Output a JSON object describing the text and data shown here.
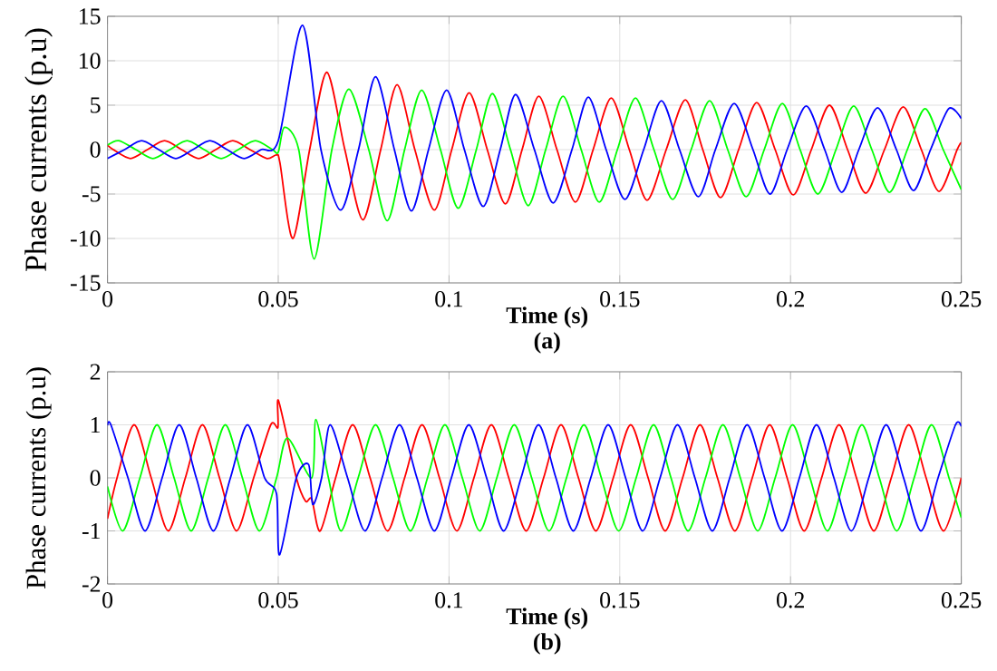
{
  "chart_data": [
    {
      "type": "line",
      "xlabel": "Time (s)",
      "ylabel": "Phase currents (p.u)",
      "annotations": [
        "(a)"
      ],
      "grid": true,
      "xlim": [
        0,
        0.25
      ],
      "ylim": [
        -15,
        15
      ],
      "xticks": [
        0,
        0.05,
        0.1,
        0.15,
        0.2,
        0.25
      ],
      "yticks": [
        -15,
        -10,
        -5,
        0,
        5,
        10,
        15
      ],
      "series": [
        {
          "color": "#ff0000",
          "x": [
            0,
            0.0017,
            0.0067,
            0.0117,
            0.0167,
            0.0217,
            0.0267,
            0.0317,
            0.0367,
            0.0417,
            0.0467,
            0.0495,
            0.0505,
            0.0543,
            0.0592,
            0.0642,
            0.0695,
            0.0748,
            0.08,
            0.0848,
            0.09,
            0.0957,
            0.1008,
            0.1059,
            0.1112,
            0.1165,
            0.1214,
            0.1263,
            0.1316,
            0.137,
            0.1422,
            0.1475,
            0.1528,
            0.158,
            0.1636,
            0.1692,
            0.1743,
            0.1795,
            0.1848,
            0.1901,
            0.1955,
            0.2008,
            0.2061,
            0.2114,
            0.2167,
            0.222,
            0.2275,
            0.233,
            0.2383,
            0.2435,
            0.2488,
            0.25
          ],
          "values": [
            0.5,
            0,
            -1,
            0,
            1,
            0,
            -1,
            0,
            1,
            0,
            -1,
            -0.6,
            -1.5,
            -10,
            0,
            8.7,
            0,
            -7.9,
            0,
            7.3,
            0,
            -6.8,
            0,
            6.4,
            0,
            -6.1,
            0,
            6.0,
            0,
            -5.9,
            0,
            5.8,
            0,
            -5.7,
            0,
            5.6,
            0,
            -5.4,
            0,
            5.3,
            0,
            -5.1,
            0,
            5.0,
            0,
            -4.9,
            0,
            4.8,
            0,
            -4.7,
            0,
            0.8
          ]
        },
        {
          "color": "#00ff00",
          "x": [
            0,
            0.0033,
            0.0083,
            0.0133,
            0.0183,
            0.0233,
            0.0283,
            0.0333,
            0.0383,
            0.0433,
            0.0483,
            0.05,
            0.0518,
            0.056,
            0.0605,
            0.0657,
            0.0707,
            0.0765,
            0.0819,
            0.087,
            0.092,
            0.0975,
            0.1027,
            0.108,
            0.1127,
            0.118,
            0.1232,
            0.1283,
            0.1334,
            0.1387,
            0.144,
            0.1493,
            0.1546,
            0.16,
            0.1655,
            0.1709,
            0.1763,
            0.1816,
            0.187,
            0.1923,
            0.1976,
            0.2028,
            0.208,
            0.2133,
            0.2185,
            0.2238,
            0.229,
            0.2342,
            0.2394,
            0.2447,
            0.25
          ],
          "values": [
            0.5,
            1,
            0,
            -1,
            0,
            1,
            0,
            -1,
            0,
            1,
            0,
            -0.3,
            2.5,
            0,
            -12.3,
            0,
            6.8,
            0,
            -8,
            0,
            6.7,
            0,
            -6.6,
            0,
            6.3,
            0,
            -6.3,
            0,
            6.0,
            0,
            -5.9,
            0,
            5.8,
            0,
            -5.6,
            0,
            5.5,
            0,
            -5.3,
            0,
            5.2,
            0,
            -5.0,
            0,
            4.9,
            0,
            -4.8,
            0,
            4.6,
            0,
            -4.5
          ]
        },
        {
          "color": "#0000ff",
          "x": [
            0,
            0.005,
            0.01,
            0.015,
            0.02,
            0.025,
            0.03,
            0.035,
            0.04,
            0.045,
            0.05,
            0.0571,
            0.0625,
            0.0683,
            0.0735,
            0.0785,
            0.084,
            0.089,
            0.094,
            0.0993,
            0.1045,
            0.11,
            0.115,
            0.1195,
            0.125,
            0.1305,
            0.136,
            0.1408,
            0.146,
            0.1515,
            0.157,
            0.1622,
            0.1675,
            0.173,
            0.178,
            0.1835,
            0.189,
            0.194,
            0.199,
            0.2046,
            0.21,
            0.215,
            0.22,
            0.2255,
            0.231,
            0.236,
            0.241,
            0.2463,
            0.25
          ],
          "values": [
            -1,
            0,
            1,
            0,
            -1,
            0,
            1,
            0,
            -1,
            0,
            1,
            14,
            0,
            -6.8,
            0,
            8.2,
            0,
            -6.9,
            0,
            6.7,
            0,
            -6.4,
            0,
            6.2,
            0,
            -6.0,
            0,
            5.9,
            0,
            -5.6,
            0,
            5.5,
            0,
            -5.3,
            0,
            5.2,
            0,
            -5.0,
            0,
            4.9,
            0,
            -4.8,
            0,
            4.7,
            0,
            -4.6,
            0,
            4.6,
            3.5
          ]
        }
      ]
    },
    {
      "type": "line",
      "xlabel": "Time (s)",
      "ylabel": "Phase currents (p.u)",
      "annotations": [
        "(b)"
      ],
      "grid": true,
      "xlim": [
        0,
        0.25
      ],
      "ylim": [
        -2,
        2
      ],
      "xticks": [
        0,
        0.05,
        0.1,
        0.15,
        0.2,
        0.25
      ],
      "yticks": [
        -2,
        -1,
        0,
        1,
        2
      ],
      "series": [
        {
          "color": "#ff0000",
          "x": [
            0,
            0.0028,
            0.0078,
            0.0128,
            0.0178,
            0.0228,
            0.0278,
            0.0328,
            0.0378,
            0.0428,
            0.0478,
            0.0499,
            0.0501,
            0.0553,
            0.058,
            0.0598,
            0.0623,
            0.0668,
            0.0718,
            0.0769,
            0.082,
            0.087,
            0.0921,
            0.0972,
            0.1023,
            0.1073,
            0.1124,
            0.1175,
            0.1226,
            0.1277,
            0.1328,
            0.1379,
            0.143,
            0.1481,
            0.1532,
            0.1583,
            0.1633,
            0.1684,
            0.1735,
            0.1786,
            0.1837,
            0.1888,
            0.1939,
            0.199,
            0.204,
            0.2091,
            0.2142,
            0.2193,
            0.2244,
            0.2295,
            0.2346,
            0.2397,
            0.2448,
            0.25
          ],
          "values": [
            -0.77,
            0,
            1,
            0,
            -1,
            0,
            1,
            0,
            -1,
            0,
            1,
            0.95,
            1.45,
            0,
            -0.44,
            -0.4,
            -1,
            0,
            1,
            0,
            -1,
            0,
            1,
            0,
            -1,
            0,
            1,
            0,
            -1,
            0,
            1,
            0,
            -1,
            0,
            1,
            0,
            -1,
            0,
            1,
            0,
            -1,
            0,
            1,
            0,
            -1,
            0,
            1,
            0,
            -1,
            0,
            1,
            0,
            -1,
            0
          ]
        },
        {
          "color": "#00ff00",
          "x": [
            0,
            0.0045,
            0.0095,
            0.0145,
            0.0195,
            0.0245,
            0.0295,
            0.0345,
            0.0395,
            0.0445,
            0.0495,
            0.0527,
            0.0598,
            0.061,
            0.0647,
            0.0684,
            0.0734,
            0.0785,
            0.0836,
            0.0887,
            0.0937,
            0.0988,
            0.1039,
            0.109,
            0.114,
            0.1191,
            0.1242,
            0.1293,
            0.1344,
            0.1395,
            0.1446,
            0.1497,
            0.1548,
            0.1599,
            0.165,
            0.17,
            0.1751,
            0.1802,
            0.1853,
            0.1904,
            0.1955,
            0.2006,
            0.2057,
            0.2108,
            0.2158,
            0.2209,
            0.226,
            0.2311,
            0.2362,
            0.2413,
            0.2464,
            0.25
          ],
          "values": [
            -0.16,
            -1,
            0,
            1,
            0,
            -1,
            0,
            1,
            0,
            -1,
            0,
            0.75,
            0,
            1.1,
            0,
            -1,
            0,
            1,
            0,
            -1,
            0,
            1,
            0,
            -1,
            0,
            1,
            0,
            -1,
            0,
            1,
            0,
            -1,
            0,
            1,
            0,
            -1,
            0,
            1,
            0,
            -1,
            0,
            1,
            0,
            -1,
            0,
            1,
            0,
            -1,
            0,
            1,
            0,
            -0.75
          ]
        },
        {
          "color": "#0000ff",
          "x": [
            0,
            0.001,
            0.006,
            0.011,
            0.016,
            0.021,
            0.026,
            0.031,
            0.036,
            0.041,
            0.046,
            0.0495,
            0.0504,
            0.0553,
            0.0589,
            0.0601,
            0.0627,
            0.0652,
            0.0703,
            0.0754,
            0.0804,
            0.0855,
            0.0906,
            0.0957,
            0.1007,
            0.1058,
            0.111,
            0.116,
            0.1211,
            0.1262,
            0.1313,
            0.1364,
            0.1415,
            0.1466,
            0.1517,
            0.1567,
            0.1618,
            0.1669,
            0.172,
            0.1771,
            0.1822,
            0.1873,
            0.1924,
            0.1975,
            0.2026,
            0.2076,
            0.2127,
            0.2178,
            0.2229,
            0.228,
            0.2331,
            0.2382,
            0.2432,
            0.2483,
            0.25
          ],
          "values": [
            0.99,
            1,
            0,
            -1,
            0,
            1,
            0,
            -1,
            0,
            1,
            0,
            -0.3,
            -1.45,
            0,
            0.25,
            -0.5,
            0,
            1,
            0,
            -1,
            0,
            1,
            0,
            -1,
            0,
            1,
            0,
            -1,
            0,
            1,
            0,
            -1,
            0,
            1,
            0,
            -1,
            0,
            1,
            0,
            -1,
            0,
            1,
            0,
            -1,
            0,
            1,
            0,
            -1,
            0,
            1,
            0,
            -1,
            0,
            1,
            0.97
          ]
        }
      ]
    }
  ]
}
